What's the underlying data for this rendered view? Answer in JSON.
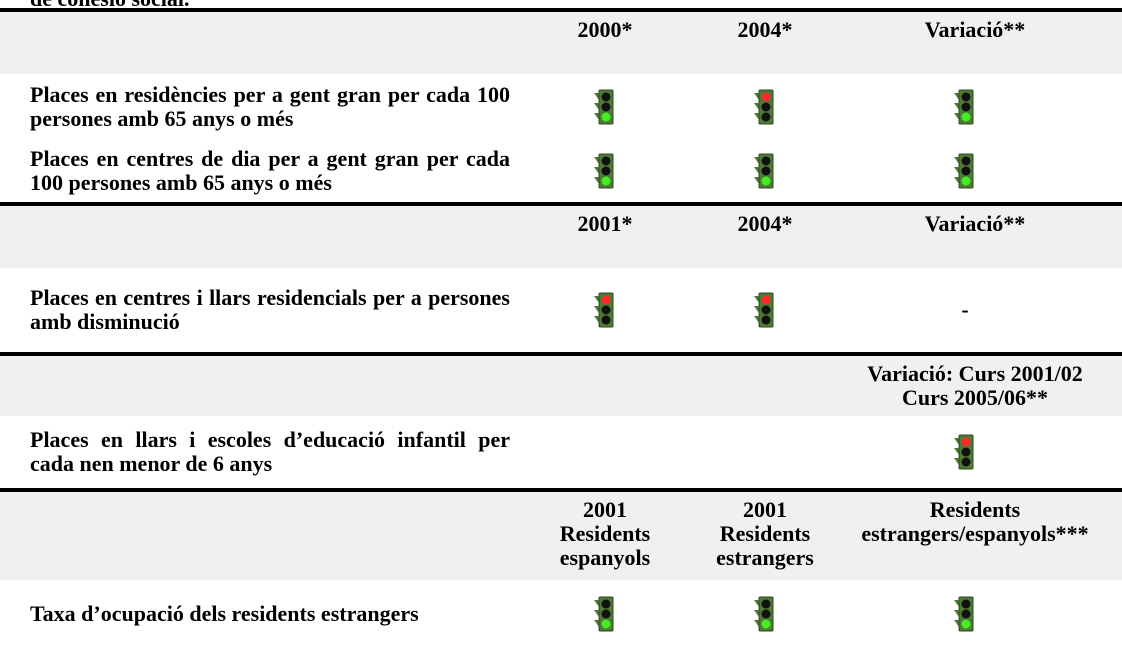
{
  "title_fragment": "de cohesió social.",
  "sections": [
    {
      "headers": [
        null,
        "2000*",
        "2004*",
        "Variació**"
      ],
      "rows": [
        {
          "label": "Places en residències per a gent gran per cada 100 persones amb 65 anys o més",
          "cells": [
            {
              "light": "green"
            },
            {
              "light": "red"
            },
            {
              "light": "green"
            }
          ]
        },
        {
          "label": "Places en centres de dia per a gent gran per cada 100 persones amb 65 anys o més",
          "cells": [
            {
              "light": "green"
            },
            {
              "light": "green"
            },
            {
              "light": "green"
            }
          ]
        }
      ]
    },
    {
      "headers": [
        null,
        "2001*",
        "2004*",
        "Variació**"
      ],
      "rows": [
        {
          "label": "Places en centres i llars residencials per a persones amb disminució",
          "cells": [
            {
              "light": "red"
            },
            {
              "light": "red"
            },
            {
              "text": "-"
            }
          ]
        }
      ]
    },
    {
      "headers": [
        null,
        null,
        null,
        "Variació: Curs 2001/02 Curs 2005/06**"
      ],
      "rows": [
        {
          "label": "Places en llars i escoles d’educació infantil per cada nen menor de 6 anys",
          "cells": [
            null,
            null,
            {
              "light": "red"
            }
          ]
        }
      ]
    },
    {
      "headers": [
        null,
        "2001 Residents espanyols",
        "2001 Residents estrangers",
        "Residents estrangers/espanyols***"
      ],
      "rows": [
        {
          "label": "Taxa d’ocupació dels residents estrangers",
          "cells": [
            {
              "light": "green"
            },
            {
              "light": "green"
            },
            {
              "light": "green"
            }
          ]
        }
      ]
    }
  ]
}
